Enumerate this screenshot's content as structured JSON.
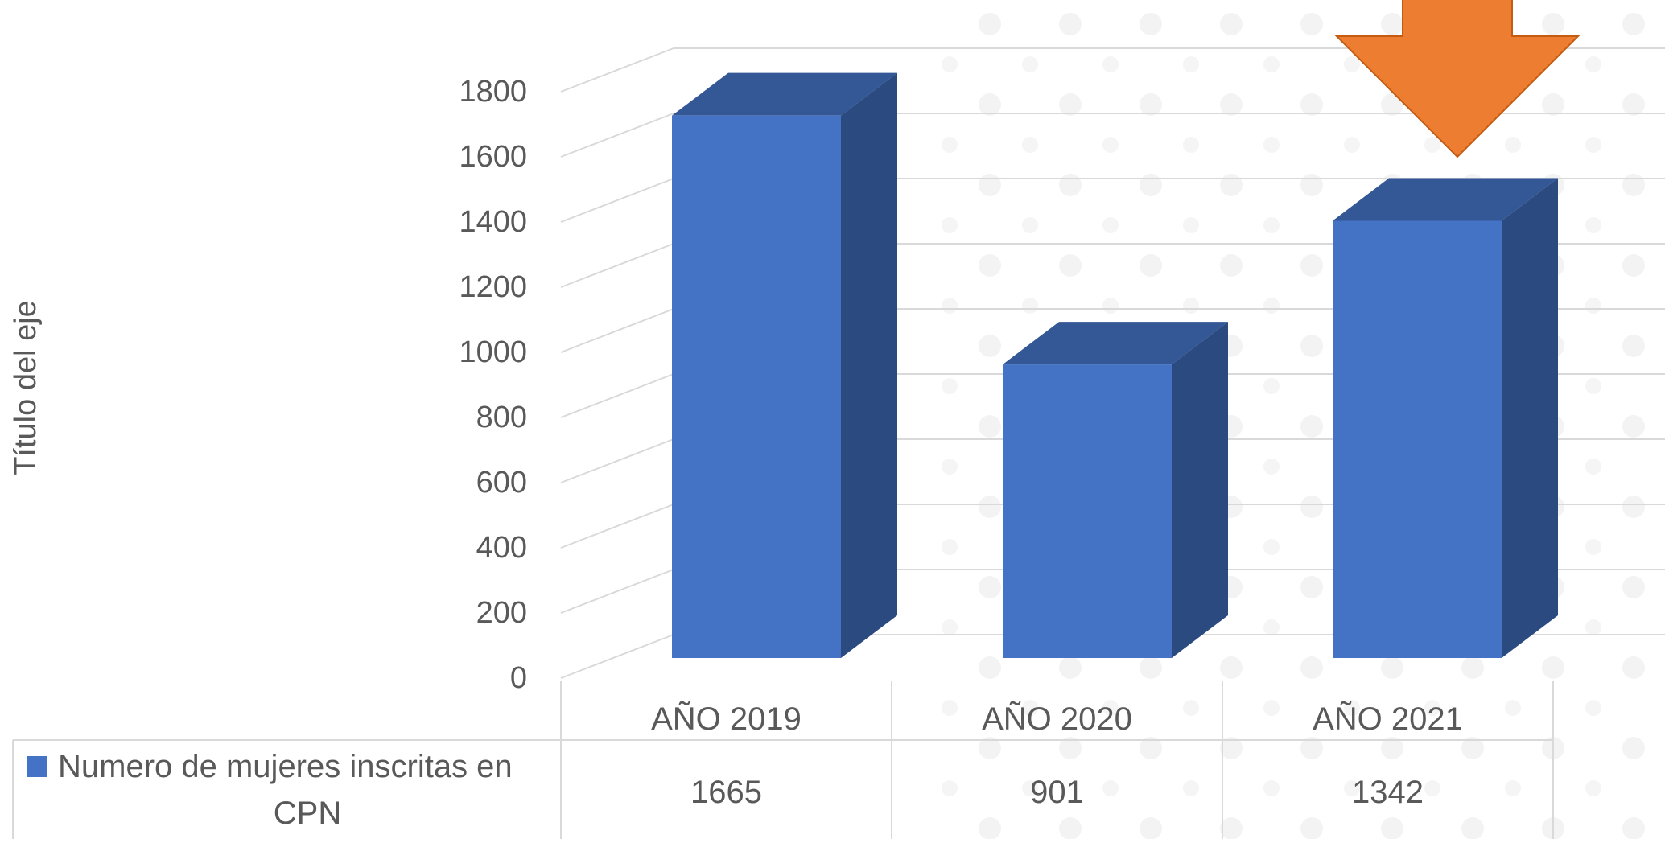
{
  "chart_data": {
    "type": "bar",
    "style": "3d-column",
    "categories": [
      "AÑO 2019",
      "AÑO 2020",
      "AÑO 2021"
    ],
    "series": [
      {
        "name": "Numero de mujeres inscritas en CPN",
        "values": [
          1665,
          901,
          1342
        ],
        "color": "#4472C4"
      }
    ],
    "ylabel": "Título del eje",
    "ylim": [
      0,
      1800
    ],
    "yticks": [
      0,
      200,
      400,
      600,
      800,
      1000,
      1200,
      1400,
      1600,
      1800
    ],
    "data_table": {
      "legend_key": "Numero de mujeres inscritas en CPN",
      "values": [
        "1665",
        "901",
        "1342"
      ]
    },
    "annotation": {
      "type": "down-arrow",
      "points_to": "AÑO 2021",
      "color": "#ED7D31"
    },
    "grid": true,
    "colors": {
      "bar_front": "#4472C4",
      "bar_top": "#335895",
      "bar_side": "#2B4A80",
      "arrow": "#ED7D31",
      "gridline": "#D9D9D9",
      "text": "#595959"
    }
  }
}
